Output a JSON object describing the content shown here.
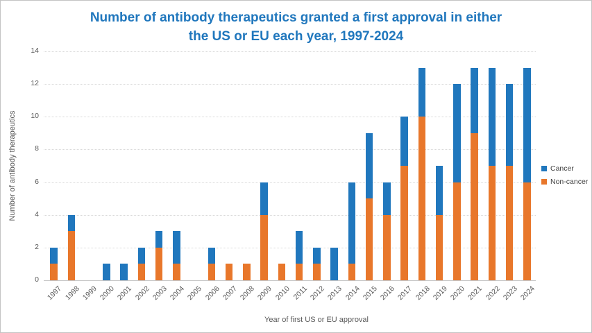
{
  "frame": {
    "background": "#FFFFFF",
    "border_color": "#C3C3C3"
  },
  "chart_data": {
    "type": "bar",
    "stacked": true,
    "title_line1": "Number of antibody therapeutics granted a first approval in either",
    "title_line2": "the US or EU each year, 1997-2024",
    "title_color": "#2077BD",
    "xlabel": "Year of first US or EU approval",
    "ylabel": "Number of antibody therapeutics",
    "categories": [
      "1997",
      "1998",
      "1999",
      "2000",
      "2001",
      "2002",
      "2003",
      "2004",
      "2005",
      "2006",
      "2007",
      "2008",
      "2009",
      "2010",
      "2011",
      "2012",
      "2013",
      "2014",
      "2015",
      "2016",
      "2017",
      "2018",
      "2019",
      "2020",
      "2021",
      "2022",
      "2023",
      "2024"
    ],
    "series": [
      {
        "name": "Cancer",
        "color": "#2077BD",
        "values": [
          1,
          1,
          0,
          1,
          1,
          1,
          1,
          2,
          0,
          1,
          0,
          0,
          2,
          0,
          2,
          1,
          2,
          5,
          4,
          2,
          3,
          3,
          3,
          6,
          4,
          6,
          5,
          7
        ]
      },
      {
        "name": "Non-cancer",
        "color": "#E8772B",
        "values": [
          1,
          3,
          0,
          0,
          0,
          1,
          2,
          1,
          0,
          1,
          1,
          1,
          4,
          1,
          1,
          1,
          0,
          1,
          5,
          4,
          7,
          10,
          4,
          6,
          9,
          7,
          7,
          6
        ]
      }
    ],
    "stack_order_bottom_to_top": [
      "Non-cancer",
      "Cancer"
    ],
    "totals": [
      2,
      4,
      0,
      1,
      1,
      2,
      3,
      3,
      0,
      2,
      1,
      1,
      6,
      1,
      3,
      2,
      2,
      6,
      9,
      6,
      10,
      13,
      7,
      12,
      13,
      13,
      12,
      13
    ],
    "yticks": [
      0,
      2,
      4,
      6,
      8,
      10,
      12,
      14
    ],
    "ylim": [
      0,
      14
    ],
    "grid": "horizontal-dotted",
    "gridline_color": "#D9D9D9",
    "axis_line_color": "#C6C6C6",
    "axis_text_color": "#595959",
    "legend_position": "right",
    "legend": [
      "Cancer",
      "Non-cancer"
    ]
  }
}
